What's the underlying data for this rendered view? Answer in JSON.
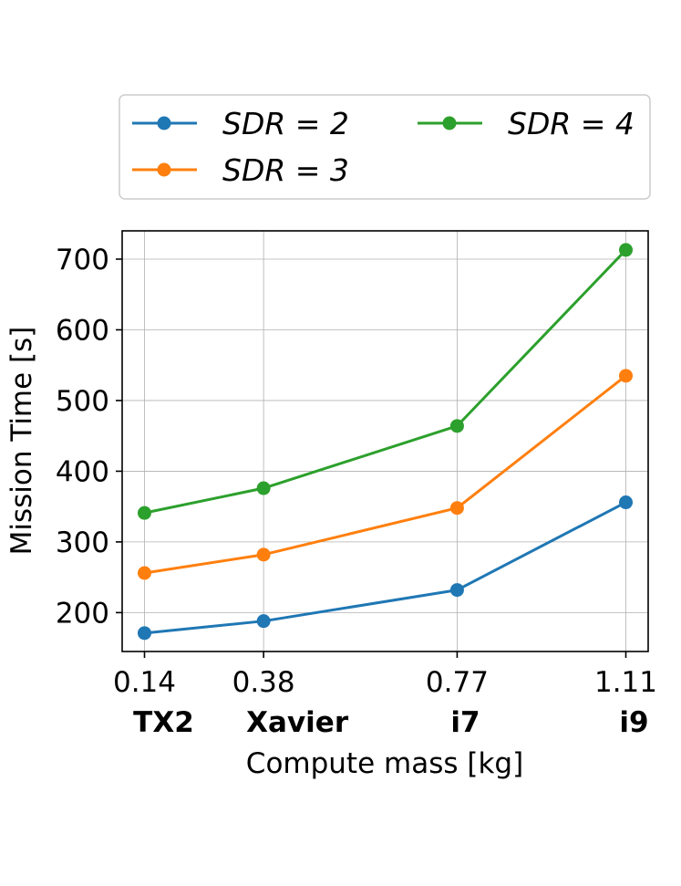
{
  "chart_data": {
    "type": "line",
    "title": "",
    "xlabel": "Compute mass [kg]",
    "ylabel": "Mission Time [s]",
    "x": [
      0.14,
      0.38,
      0.77,
      1.11
    ],
    "x_tick_labels": [
      "0.14",
      "0.38",
      "0.77",
      "1.11"
    ],
    "x_category_labels": [
      "TX2",
      "Xavier",
      "i7",
      "i9"
    ],
    "xlim": [
      0.095,
      1.155
    ],
    "ylim": [
      145,
      740
    ],
    "y_ticks": [
      200,
      300,
      400,
      500,
      600,
      700
    ],
    "y_tick_labels": [
      "200",
      "300",
      "400",
      "500",
      "600",
      "700"
    ],
    "grid": true,
    "legend_position": "top",
    "series": [
      {
        "name": "SDR = 2",
        "values": [
          171,
          188,
          232,
          356
        ],
        "color": "#1f77b4"
      },
      {
        "name": "SDR = 3",
        "values": [
          256,
          282,
          348,
          535
        ],
        "color": "#ff7f0e"
      },
      {
        "name": "SDR = 4",
        "values": [
          341,
          376,
          464,
          713
        ],
        "color": "#2ca02c"
      }
    ]
  }
}
